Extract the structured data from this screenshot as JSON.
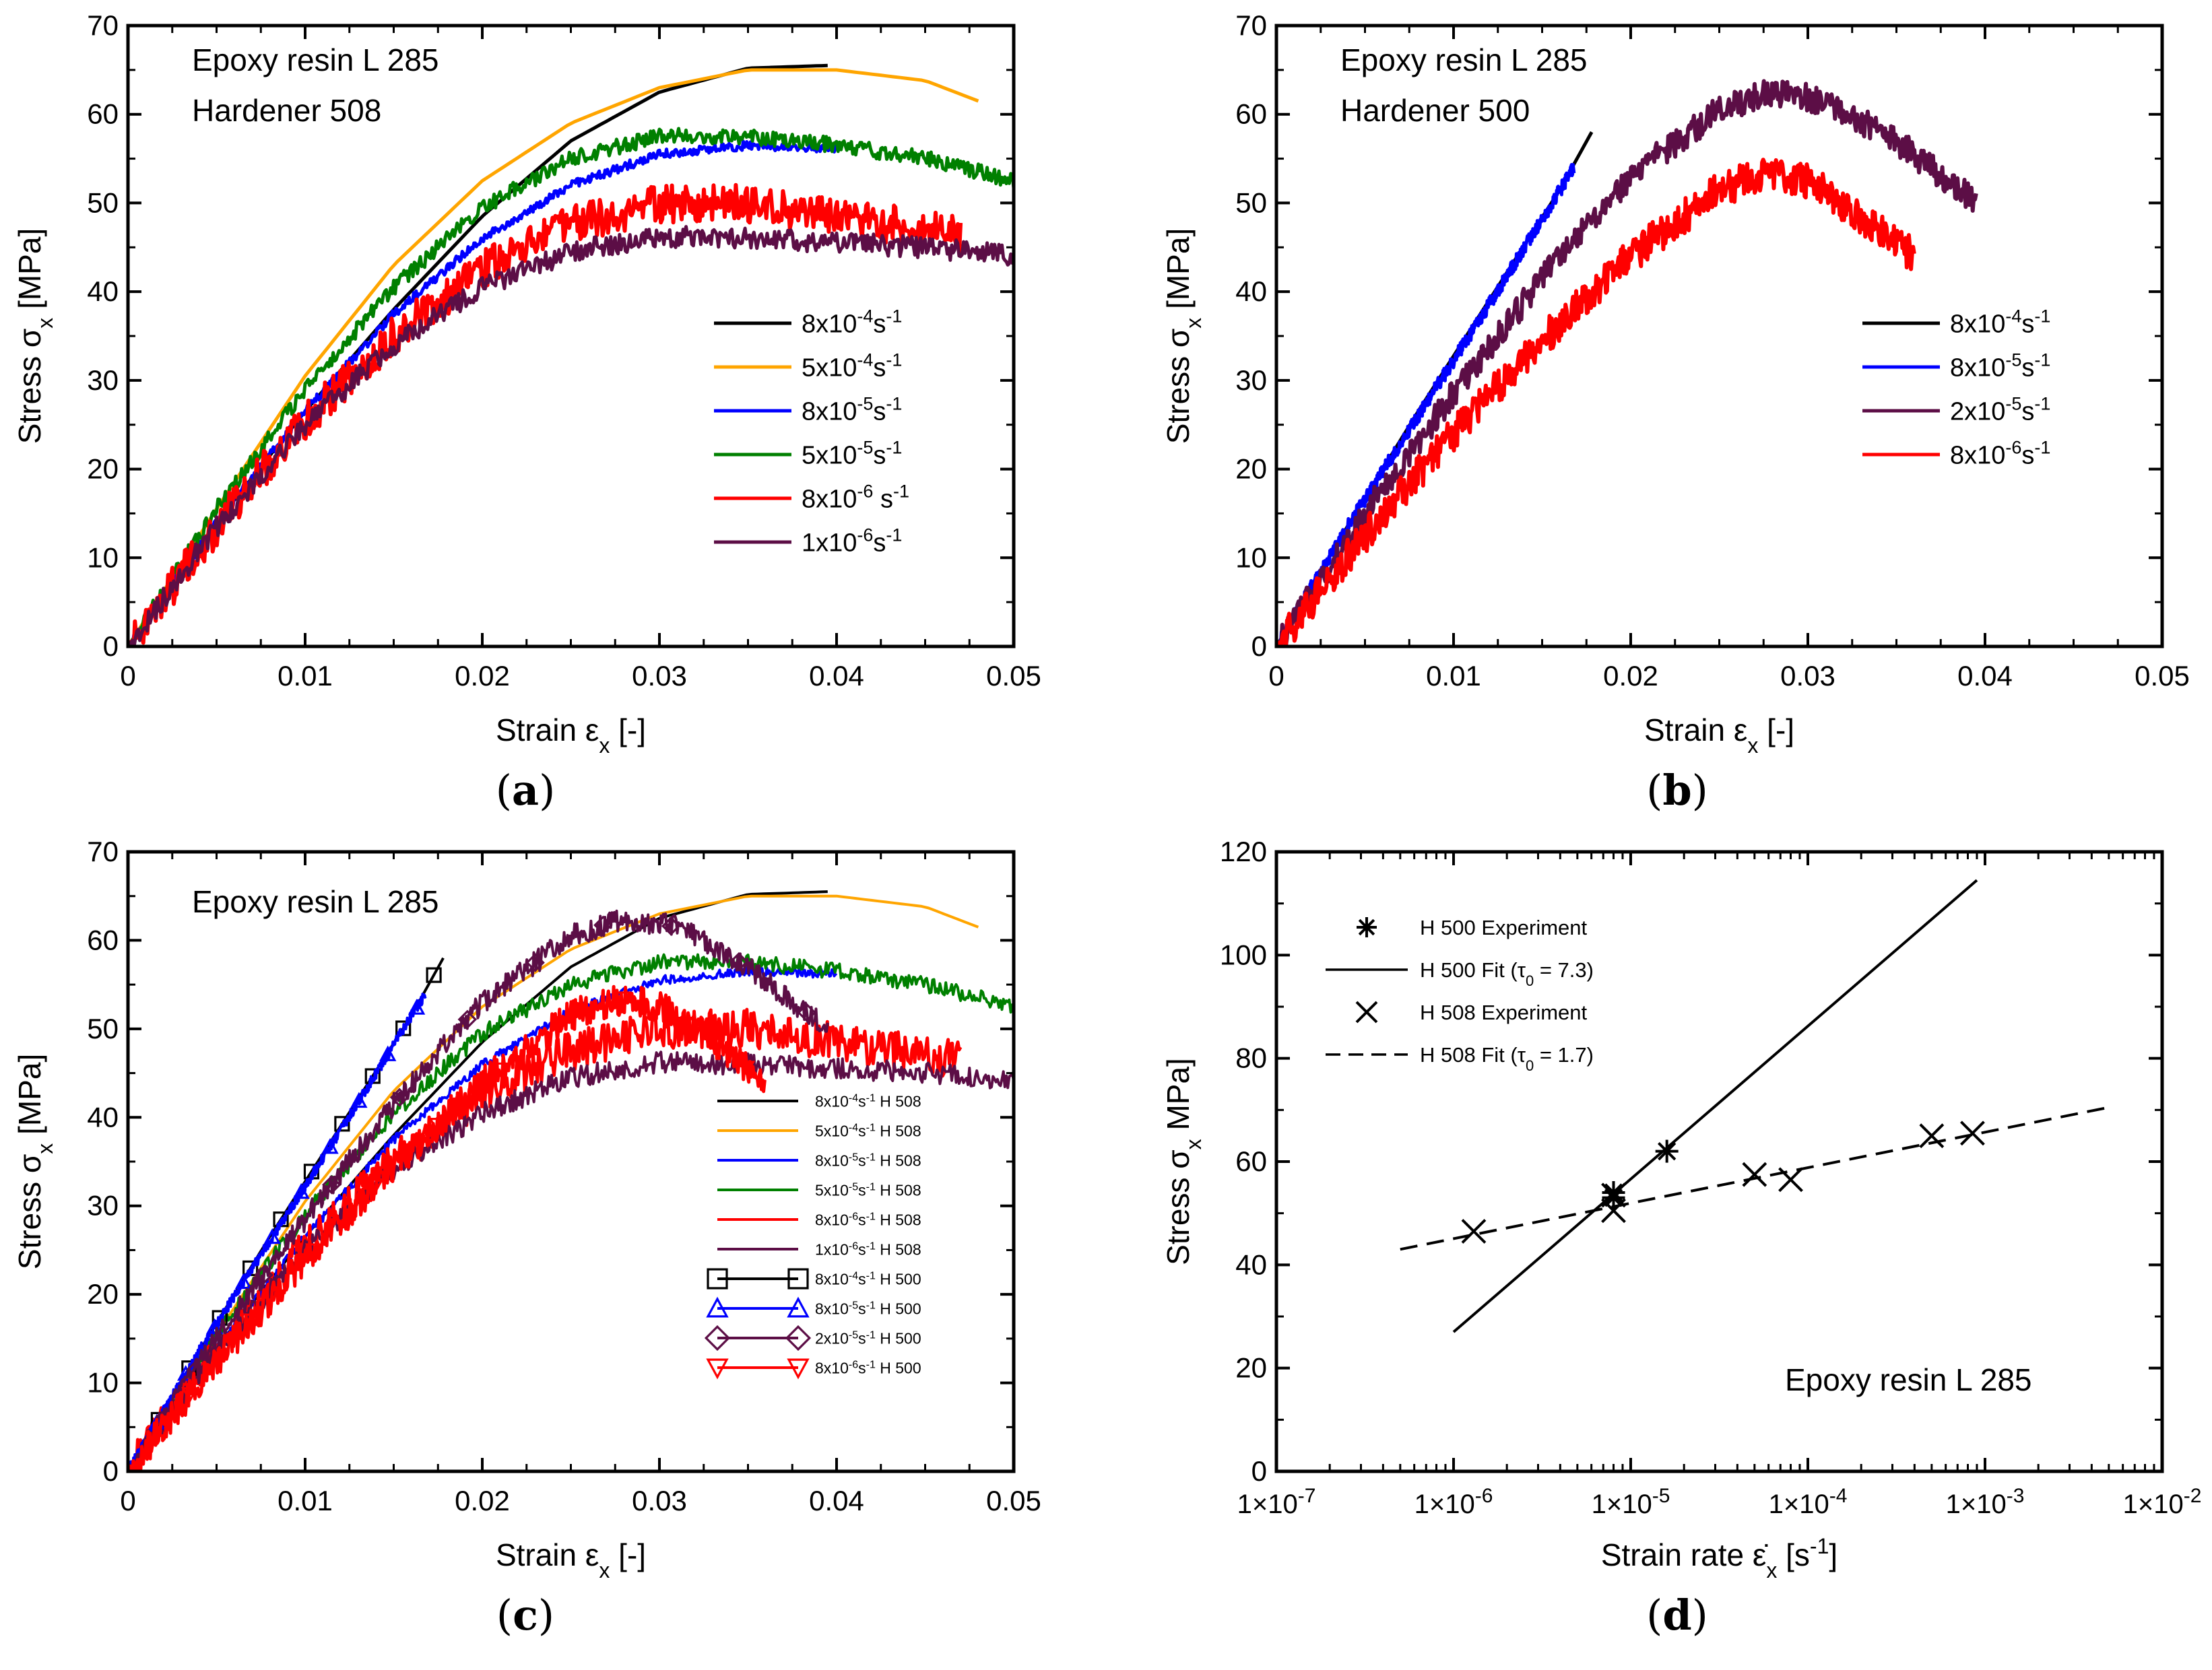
{
  "chart_data": [
    {
      "id": "a",
      "type": "line",
      "panel_label": "(a)",
      "title": "",
      "annotation": [
        "Epoxy resin L 285",
        "Hardener 508"
      ],
      "xlabel": "Strain ε",
      "xlabel_sub": "x",
      "xlabel_unit": " [-]",
      "ylabel": "Stress σ",
      "ylabel_sub": "x",
      "ylabel_unit": " [MPa]",
      "xlim": [
        0,
        0.05
      ],
      "ylim": [
        0,
        70
      ],
      "xscale": "linear",
      "x_ticks": [
        0,
        0.01,
        0.02,
        0.03,
        0.04,
        0.05
      ],
      "x_tick_labels": [
        "0",
        "0.01",
        "0.02",
        "0.03",
        "0.04",
        "0.05"
      ],
      "y_ticks": [
        0,
        10,
        20,
        30,
        40,
        50,
        60,
        70
      ],
      "y_tick_labels": [
        "0",
        "10",
        "20",
        "30",
        "40",
        "50",
        "60",
        "70"
      ],
      "legend_position": "center-right",
      "series": [
        {
          "name": "8x10-4s-1",
          "legend": {
            "mantissa": "8x10",
            "exp": "-4",
            "unit": "s",
            "unit_exp": "-1",
            "suffix": ""
          },
          "color": "#000000",
          "noise": 0,
          "x": [
            0,
            0.005,
            0.01,
            0.015,
            0.02,
            0.025,
            0.03,
            0.035,
            0.0395
          ],
          "values": [
            0,
            14,
            26.5,
            38,
            48.5,
            57,
            62.5,
            65.2,
            65.5
          ]
        },
        {
          "name": "5x10-4s-1",
          "legend": {
            "mantissa": "5x10",
            "exp": "-4",
            "unit": "s",
            "unit_exp": "-1",
            "suffix": ""
          },
          "color": "#ffa500",
          "noise": 0,
          "x": [
            0,
            0.005,
            0.01,
            0.015,
            0.02,
            0.025,
            0.03,
            0.035,
            0.04,
            0.045,
            0.048
          ],
          "values": [
            0,
            15.5,
            30.5,
            43,
            52.5,
            59,
            63,
            65,
            65,
            63.8,
            61.5
          ]
        },
        {
          "name": "8x10-5s-1",
          "legend": {
            "mantissa": "8x10",
            "exp": "-5",
            "unit": "s",
            "unit_exp": "-1",
            "suffix": ""
          },
          "color": "#0000ff",
          "noise": 0.5,
          "x": [
            0,
            0.005,
            0.01,
            0.015,
            0.02,
            0.025,
            0.03,
            0.035,
            0.04
          ],
          "values": [
            0,
            14,
            26.5,
            37.5,
            46,
            52,
            55.5,
            56.5,
            56.2
          ]
        },
        {
          "name": "5x10-5s-1",
          "legend": {
            "mantissa": "5x10",
            "exp": "-5",
            "unit": "s",
            "unit_exp": "-1",
            "suffix": ""
          },
          "color": "#008000",
          "noise": 0.9,
          "x": [
            0,
            0.005,
            0.01,
            0.015,
            0.02,
            0.025,
            0.03,
            0.035,
            0.04,
            0.045,
            0.05
          ],
          "values": [
            0,
            15.5,
            29,
            40.5,
            49.5,
            55,
            57.5,
            57.5,
            56.5,
            55,
            52.5
          ]
        },
        {
          "name": "8x10-6 s-1",
          "legend": {
            "mantissa": "8x10",
            "exp": "-6",
            "unit": " s",
            "unit_exp": "-1",
            "suffix": ""
          },
          "color": "#ff0000",
          "noise": 2.2,
          "x": [
            0,
            0.005,
            0.01,
            0.015,
            0.02,
            0.025,
            0.03,
            0.035,
            0.04,
            0.047
          ],
          "values": [
            0,
            13.5,
            25.5,
            35,
            42.5,
            47.5,
            50,
            50,
            48.5,
            46.5
          ]
        },
        {
          "name": "1x10-6s-1",
          "legend": {
            "mantissa": "1x10",
            "exp": "-6",
            "unit": "s",
            "unit_exp": "-1",
            "suffix": ""
          },
          "color": "#5c0e46",
          "noise": 1.2,
          "x": [
            0,
            0.005,
            0.01,
            0.015,
            0.02,
            0.025,
            0.03,
            0.035,
            0.04,
            0.045,
            0.05
          ],
          "values": [
            0,
            13.5,
            25,
            34,
            40.5,
            44.5,
            46.2,
            46,
            45.5,
            45,
            44
          ]
        }
      ]
    },
    {
      "id": "b",
      "type": "line",
      "panel_label": "(b)",
      "title": "",
      "annotation": [
        "Epoxy resin L 285",
        "Hardener 500"
      ],
      "xlabel": "Strain ε",
      "xlabel_sub": "x",
      "xlabel_unit": " [-]",
      "ylabel": "Stress σ",
      "ylabel_sub": "x",
      "ylabel_unit": " [MPa]",
      "xlim": [
        0,
        0.05
      ],
      "ylim": [
        0,
        70
      ],
      "xscale": "linear",
      "x_ticks": [
        0,
        0.01,
        0.02,
        0.03,
        0.04,
        0.05
      ],
      "x_tick_labels": [
        "0",
        "0.01",
        "0.02",
        "0.03",
        "0.04",
        "0.05"
      ],
      "y_ticks": [
        0,
        10,
        20,
        30,
        40,
        50,
        60,
        70
      ],
      "y_tick_labels": [
        "0",
        "10",
        "20",
        "30",
        "40",
        "50",
        "60",
        "70"
      ],
      "legend_position": "center-right",
      "series": [
        {
          "name": "8x10-4s-1",
          "legend": {
            "mantissa": "8x10",
            "exp": "-4",
            "unit": "s",
            "unit_exp": "-1",
            "suffix": ""
          },
          "color": "#000000",
          "noise": 0,
          "x": [
            0,
            0.004,
            0.008,
            0.012,
            0.016,
            0.0178
          ],
          "values": [
            0,
            13.5,
            26.5,
            39,
            51.5,
            58
          ]
        },
        {
          "name": "8x10-5s-1",
          "legend": {
            "mantissa": "8x10",
            "exp": "-5",
            "unit": "s",
            "unit_exp": "-1",
            "suffix": ""
          },
          "color": "#0000ff",
          "noise": 0.8,
          "x": [
            0,
            0.004,
            0.008,
            0.012,
            0.0168
          ],
          "values": [
            0,
            13.5,
            26,
            38.5,
            54
          ]
        },
        {
          "name": "2x10-5s-1",
          "legend": {
            "mantissa": "2x10",
            "exp": "-5",
            "unit": "s",
            "unit_exp": "-1",
            "suffix": ""
          },
          "color": "#5c0e46",
          "noise": 1.6,
          "x": [
            0,
            0.005,
            0.01,
            0.015,
            0.02,
            0.025,
            0.028,
            0.031,
            0.035,
            0.0395
          ],
          "values": [
            0,
            15,
            28.5,
            41.5,
            53,
            60.5,
            62.5,
            61.5,
            57,
            50
          ]
        },
        {
          "name": "8x10-6s-1",
          "legend": {
            "mantissa": "8x10",
            "exp": "-6",
            "unit": "s",
            "unit_exp": "-1",
            "suffix": ""
          },
          "color": "#ff0000",
          "noise": 2.0,
          "x": [
            0,
            0.005,
            0.01,
            0.015,
            0.02,
            0.025,
            0.028,
            0.03,
            0.033,
            0.036
          ],
          "values": [
            0,
            12.5,
            24,
            34.5,
            44,
            51.5,
            53.5,
            52.5,
            48.5,
            44
          ]
        }
      ]
    },
    {
      "id": "c",
      "type": "line",
      "panel_label": "(c)",
      "title": "",
      "annotation": [
        "Epoxy resin L 285"
      ],
      "xlabel": "Strain ε",
      "xlabel_sub": "x",
      "xlabel_unit": " [-]",
      "ylabel": "Stress σ",
      "ylabel_sub": "x",
      "ylabel_unit": " [MPa]",
      "xlim": [
        0,
        0.05
      ],
      "ylim": [
        0,
        70
      ],
      "xscale": "linear",
      "x_ticks": [
        0,
        0.01,
        0.02,
        0.03,
        0.04,
        0.05
      ],
      "x_tick_labels": [
        "0",
        "0.01",
        "0.02",
        "0.03",
        "0.04",
        "0.05"
      ],
      "y_ticks": [
        0,
        10,
        20,
        30,
        40,
        50,
        60,
        70
      ],
      "y_tick_labels": [
        "0",
        "10",
        "20",
        "30",
        "40",
        "50",
        "60",
        "70"
      ],
      "legend_position": "center-right",
      "series": [
        {
          "name": "8x10-4s-1 H 508",
          "legend": {
            "mantissa": "8x10",
            "exp": "-4",
            "unit": "s",
            "unit_exp": "-1",
            "suffix": " H 508"
          },
          "color": "#000000",
          "noise": 0,
          "x": [
            0,
            0.005,
            0.01,
            0.015,
            0.02,
            0.025,
            0.03,
            0.035,
            0.0395
          ],
          "values": [
            0,
            14,
            26.5,
            38,
            48.5,
            57,
            62.5,
            65.2,
            65.5
          ]
        },
        {
          "name": "5x10-4s-1 H 508",
          "legend": {
            "mantissa": "5x10",
            "exp": "-4",
            "unit": "s",
            "unit_exp": "-1",
            "suffix": " H 508"
          },
          "color": "#ffa500",
          "noise": 0,
          "x": [
            0,
            0.005,
            0.01,
            0.015,
            0.02,
            0.025,
            0.03,
            0.035,
            0.04,
            0.045,
            0.048
          ],
          "values": [
            0,
            15.5,
            30.5,
            43,
            52.5,
            59,
            63,
            65,
            65,
            63.8,
            61.5
          ]
        },
        {
          "name": "8x10-5s-1 H 508",
          "legend": {
            "mantissa": "8x10",
            "exp": "-5",
            "unit": "s",
            "unit_exp": "-1",
            "suffix": " H 508"
          },
          "color": "#0000ff",
          "noise": 0.5,
          "x": [
            0,
            0.005,
            0.01,
            0.015,
            0.02,
            0.025,
            0.03,
            0.035,
            0.04
          ],
          "values": [
            0,
            14,
            26.5,
            37.5,
            46,
            52,
            55.5,
            56.5,
            56.2
          ]
        },
        {
          "name": "5x10-5s-1 H 508",
          "legend": {
            "mantissa": "5x10",
            "exp": "-5",
            "unit": "s",
            "unit_exp": "-1",
            "suffix": " H 508"
          },
          "color": "#008000",
          "noise": 0.9,
          "x": [
            0,
            0.005,
            0.01,
            0.015,
            0.02,
            0.025,
            0.03,
            0.035,
            0.04,
            0.045,
            0.05
          ],
          "values": [
            0,
            15.5,
            29,
            40.5,
            49.5,
            55,
            57.5,
            57.5,
            56.5,
            55,
            52.5
          ]
        },
        {
          "name": "8x10-6s-1 H 508",
          "legend": {
            "mantissa": "8x10",
            "exp": "-6",
            "unit": "s",
            "unit_exp": "-1",
            "suffix": " H 508"
          },
          "color": "#ff0000",
          "noise": 2.2,
          "x": [
            0,
            0.005,
            0.01,
            0.015,
            0.02,
            0.025,
            0.03,
            0.035,
            0.04,
            0.047
          ],
          "values": [
            0,
            13.5,
            25.5,
            35,
            42.5,
            47.5,
            50,
            50,
            48.5,
            46.5
          ]
        },
        {
          "name": "1x10-6s-1 H 508",
          "legend": {
            "mantissa": "1x10",
            "exp": "-6",
            "unit": "s",
            "unit_exp": "-1",
            "suffix": " H 508"
          },
          "color": "#5c0e46",
          "noise": 1.2,
          "x": [
            0,
            0.005,
            0.01,
            0.015,
            0.02,
            0.025,
            0.03,
            0.035,
            0.04,
            0.045,
            0.05
          ],
          "values": [
            0,
            13.5,
            25,
            34,
            40.5,
            44.5,
            46.2,
            46,
            45.5,
            45,
            44
          ]
        },
        {
          "name": "8x10-4s-1 H 500",
          "legend": {
            "mantissa": "8x10",
            "exp": "-4",
            "unit": "s",
            "unit_exp": "-1",
            "suffix": " H 500"
          },
          "color": "#000000",
          "noise": 0,
          "marker": "square",
          "x": [
            0,
            0.004,
            0.008,
            0.012,
            0.016,
            0.0178
          ],
          "values": [
            0,
            13.5,
            26.5,
            39,
            51.5,
            58
          ]
        },
        {
          "name": "8x10-5s-1 H 500",
          "legend": {
            "mantissa": "8x10",
            "exp": "-5",
            "unit": "s",
            "unit_exp": "-1",
            "suffix": " H 500"
          },
          "color": "#0000ff",
          "noise": 0.6,
          "marker": "triangle-up",
          "x": [
            0,
            0.004,
            0.008,
            0.012,
            0.0168
          ],
          "values": [
            0,
            13.5,
            26,
            38.5,
            54
          ]
        },
        {
          "name": "2x10-5s-1 H 500",
          "legend": {
            "mantissa": "2x10",
            "exp": "-5",
            "unit": "s",
            "unit_exp": "-1",
            "suffix": " H 500"
          },
          "color": "#5c0e46",
          "noise": 1.3,
          "marker": "diamond",
          "x": [
            0,
            0.005,
            0.01,
            0.015,
            0.02,
            0.025,
            0.028,
            0.031,
            0.035,
            0.0395
          ],
          "values": [
            0,
            15,
            28.5,
            41.5,
            53,
            60.5,
            62.5,
            61.5,
            57,
            50
          ]
        },
        {
          "name": "8x10-6s-1 H 500",
          "legend": {
            "mantissa": "8x10",
            "exp": "-6",
            "unit": "s",
            "unit_exp": "-1",
            "suffix": " H 500"
          },
          "color": "#ff0000",
          "noise": 1.8,
          "marker": "triangle-down",
          "x": [
            0,
            0.005,
            0.01,
            0.015,
            0.02,
            0.025,
            0.028,
            0.03,
            0.033,
            0.036
          ],
          "values": [
            0,
            12.5,
            24,
            34.5,
            44,
            51.5,
            53.5,
            52.5,
            48.5,
            44
          ]
        }
      ]
    },
    {
      "id": "d",
      "type": "scatter",
      "panel_label": "(d)",
      "title": "",
      "annotation": [
        "Epoxy resin L 285"
      ],
      "xlabel": "Strain rate ε̇",
      "xlabel_sub": "x",
      "xlabel_unit": " [s",
      "xlabel_unit_exp": "-1",
      "xlabel_tail": "]",
      "ylabel": "Stress σ",
      "ylabel_sub": "x",
      "ylabel_unit": " MPa]",
      "xscale": "log",
      "xlim_exp": [
        -7,
        -2
      ],
      "ylim": [
        0,
        120
      ],
      "x_tick_exponents": [
        -7,
        -6,
        -5,
        -4,
        -3,
        -2
      ],
      "x_tick_mantissa": "1×10",
      "y_ticks": [
        0,
        20,
        40,
        60,
        80,
        100,
        120
      ],
      "y_tick_labels": [
        "0",
        "20",
        "40",
        "60",
        "80",
        "100",
        "120"
      ],
      "legend_position": "top-left",
      "series": [
        {
          "name": "H 500 Experiment",
          "kind": "markers",
          "marker": "asterisk",
          "color": "#000000",
          "x": [
            8e-06,
            1.6e-05,
            8e-06
          ],
          "values": [
            54,
            62,
            53
          ]
        },
        {
          "name": "H 500 Fit (τ0 = 7.3)",
          "legend_parts": [
            "H 500 Fit (τ",
            "0",
            " = 7.3)"
          ],
          "kind": "line",
          "dash": "solid",
          "color": "#000000",
          "x": [
            1e-06,
            0.0009
          ],
          "values": [
            27,
            114.5
          ]
        },
        {
          "name": "H 508 Experiment",
          "kind": "markers",
          "marker": "cross",
          "color": "#000000",
          "x": [
            1.3e-06,
            8e-06,
            5e-05,
            8e-05,
            0.0005,
            0.00085,
            8e-06
          ],
          "values": [
            46.5,
            50.5,
            57.5,
            56.5,
            65,
            65.5,
            53.5
          ]
        },
        {
          "name": "H 508 Fit (τ0 = 1.7)",
          "legend_parts": [
            "H 508 Fit  (τ",
            "0",
            " = 1.7)"
          ],
          "kind": "line",
          "dash": "dashed",
          "color": "#000000",
          "x": [
            5e-07,
            0.005
          ],
          "values": [
            43,
            70.5
          ]
        }
      ]
    }
  ]
}
